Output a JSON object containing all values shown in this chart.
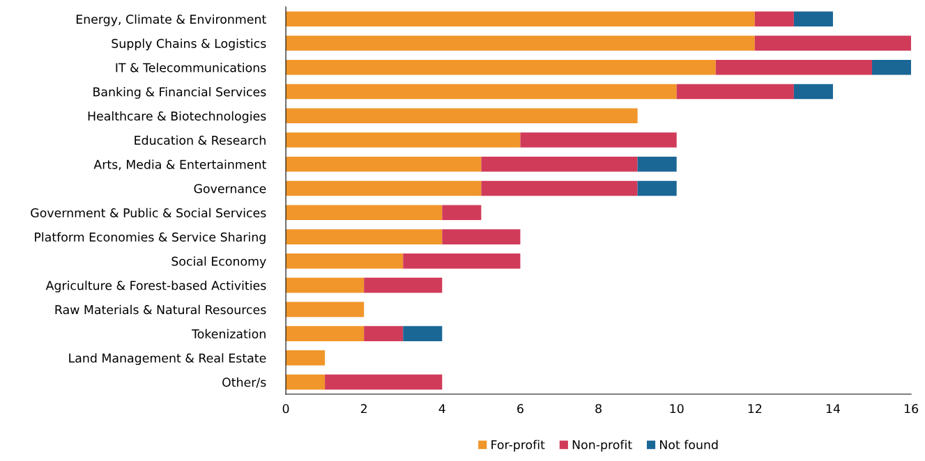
{
  "chart_data": {
    "type": "bar",
    "orientation": "horizontal",
    "stacked": true,
    "categories": [
      "Energy, Climate & Environment",
      "Supply Chains & Logistics",
      "IT & Telecommunications",
      "Banking & Financial Services",
      "Healthcare & Biotechnologies",
      "Education & Research",
      "Arts, Media & Entertainment",
      "Governance",
      "Government & Public & Social Services",
      "Platform Economies & Service Sharing",
      "Social Economy",
      "Agriculture & Forest-based Activities",
      "Raw Materials & Natural Resources",
      "Tokenization",
      "Land Management & Real Estate",
      "Other/s"
    ],
    "series": [
      {
        "name": "For-profit",
        "color": "#f0962a",
        "values": [
          12,
          12,
          11,
          10,
          9,
          6,
          5,
          5,
          4,
          4,
          3,
          2,
          2,
          2,
          1,
          1
        ]
      },
      {
        "name": "Non-profit",
        "color": "#d13b5a",
        "values": [
          1,
          4,
          4,
          3,
          0,
          4,
          4,
          4,
          1,
          2,
          3,
          2,
          0,
          1,
          0,
          3
        ]
      },
      {
        "name": "Not found",
        "color": "#1a6796",
        "values": [
          1,
          0,
          1,
          1,
          0,
          0,
          1,
          1,
          0,
          0,
          0,
          0,
          0,
          1,
          0,
          0
        ]
      }
    ],
    "xlim": [
      0,
      16
    ],
    "xticks": [
      0,
      2,
      4,
      6,
      8,
      10,
      12,
      14,
      16
    ],
    "grid": false,
    "legend": "bottom"
  }
}
